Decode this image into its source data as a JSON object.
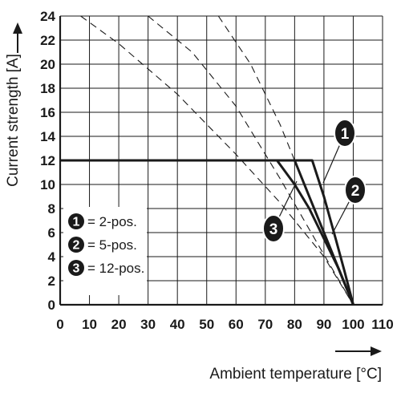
{
  "chart_data": {
    "type": "line",
    "xlabel": "Ambient temperature [°C]",
    "ylabel": "Current strength [A]",
    "xlim": [
      0,
      110
    ],
    "ylim": [
      0,
      24
    ],
    "xticks": [
      0,
      10,
      20,
      30,
      40,
      50,
      60,
      70,
      80,
      90,
      100,
      110
    ],
    "yticks": [
      0,
      2,
      4,
      6,
      8,
      10,
      12,
      14,
      16,
      18,
      20,
      22,
      24
    ],
    "grid": true,
    "legend_position": "bottom-left",
    "series": [
      {
        "name": "2-pos.",
        "marker_label": "1",
        "style": "solid",
        "points": [
          [
            0,
            12
          ],
          [
            86,
            12
          ],
          [
            90,
            9
          ],
          [
            94,
            5.5
          ],
          [
            97,
            2.8
          ],
          [
            100,
            0
          ]
        ]
      },
      {
        "name": "5-pos.",
        "marker_label": "2",
        "style": "solid",
        "points": [
          [
            0,
            12
          ],
          [
            80,
            12
          ],
          [
            85,
            9
          ],
          [
            90,
            6
          ],
          [
            95,
            3
          ],
          [
            100,
            0
          ]
        ]
      },
      {
        "name": "12-pos.",
        "marker_label": "3",
        "style": "solid",
        "points": [
          [
            0,
            12
          ],
          [
            74,
            12
          ],
          [
            80,
            10
          ],
          [
            85,
            8
          ],
          [
            90,
            5.5
          ],
          [
            95,
            3
          ],
          [
            100,
            0
          ]
        ]
      },
      {
        "name": "",
        "style": "dashed",
        "points": [
          [
            7,
            24
          ],
          [
            20,
            21.7
          ],
          [
            40,
            17.5
          ],
          [
            60,
            12.5
          ],
          [
            75,
            8.5
          ],
          [
            90,
            4
          ],
          [
            100,
            0
          ]
        ]
      },
      {
        "name": "",
        "style": "dashed",
        "points": [
          [
            30,
            24
          ],
          [
            45,
            21
          ],
          [
            60,
            16.5
          ],
          [
            75,
            10.5
          ],
          [
            88,
            5
          ],
          [
            100,
            0
          ]
        ]
      },
      {
        "name": "",
        "style": "dashed",
        "points": [
          [
            54,
            24
          ],
          [
            65,
            20
          ],
          [
            75,
            15
          ],
          [
            85,
            9
          ],
          [
            93,
            4
          ],
          [
            100,
            0
          ]
        ]
      }
    ],
    "legend": [
      {
        "marker_label": "1",
        "text": "= 2-pos."
      },
      {
        "marker_label": "2",
        "text": "= 5-pos."
      },
      {
        "marker_label": "3",
        "text": "= 12-pos."
      }
    ]
  }
}
